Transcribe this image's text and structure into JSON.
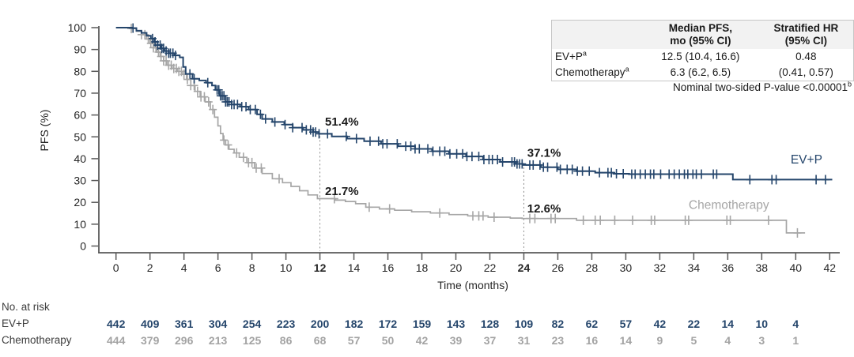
{
  "chart_data": {
    "type": "line",
    "subtype": "kaplan-meier-step",
    "title": "",
    "xlabel": "Time (months)",
    "ylabel": "PFS (%)",
    "xlim": [
      0,
      42
    ],
    "ylim": [
      0,
      100
    ],
    "x_ticks": [
      0,
      2,
      4,
      6,
      8,
      10,
      12,
      14,
      16,
      18,
      20,
      22,
      24,
      26,
      28,
      30,
      32,
      34,
      36,
      38,
      40,
      42
    ],
    "x_ticks_bold": [
      12,
      24
    ],
    "y_ticks": [
      0,
      10,
      20,
      30,
      40,
      50,
      60,
      70,
      80,
      90,
      100
    ],
    "grid": false,
    "legend_position": "labels-at-line-end",
    "series": [
      {
        "name": "Chemotherapy",
        "color": "#a6a6a6",
        "label_pos": {
          "month": 33.7,
          "pct": 17.0
        },
        "points": [
          [
            0,
            100
          ],
          [
            0.85,
            99.6
          ],
          [
            1.2,
            98.3
          ],
          [
            1.5,
            96.8
          ],
          [
            1.8,
            94.8
          ],
          [
            2.0,
            92.8
          ],
          [
            2.2,
            90.8
          ],
          [
            2.4,
            88.8
          ],
          [
            2.6,
            86.8
          ],
          [
            2.8,
            84.8
          ],
          [
            3.0,
            82.8
          ],
          [
            3.3,
            81.3
          ],
          [
            3.6,
            80.0
          ],
          [
            3.9,
            78.6
          ],
          [
            4.15,
            76.3
          ],
          [
            4.4,
            73.5
          ],
          [
            4.65,
            70.8
          ],
          [
            4.95,
            68.3
          ],
          [
            5.25,
            66.0
          ],
          [
            5.55,
            62.5
          ],
          [
            5.8,
            59.0
          ],
          [
            6.0,
            55.0
          ],
          [
            6.15,
            51.5
          ],
          [
            6.3,
            48.5
          ],
          [
            6.45,
            46.3
          ],
          [
            6.65,
            44.3
          ],
          [
            6.95,
            42.6
          ],
          [
            7.25,
            40.6
          ],
          [
            7.7,
            38.2
          ],
          [
            8.15,
            35.7
          ],
          [
            8.6,
            33.2
          ],
          [
            9.2,
            30.8
          ],
          [
            9.8,
            29.0
          ],
          [
            10.3,
            27.3
          ],
          [
            10.8,
            25.3
          ],
          [
            11.3,
            23.4
          ],
          [
            11.85,
            21.7
          ],
          [
            12.9,
            21.0
          ],
          [
            13.5,
            20.4
          ],
          [
            14.1,
            19.4
          ],
          [
            14.7,
            17.8
          ],
          [
            15.5,
            17.0
          ],
          [
            16.4,
            16.4
          ],
          [
            17.4,
            15.7
          ],
          [
            18.5,
            15.1
          ],
          [
            19.6,
            14.4
          ],
          [
            20.7,
            13.8
          ],
          [
            21.9,
            13.2
          ],
          [
            23.2,
            12.8
          ],
          [
            23.9,
            12.6
          ],
          [
            26.9,
            12.6
          ],
          [
            27.1,
            11.8
          ],
          [
            39.2,
            11.8
          ],
          [
            39.45,
            6.0
          ],
          [
            40.55,
            6.0
          ]
        ],
        "censor_months": [
          0.9,
          1.5,
          1.7,
          1.9,
          2.05,
          2.2,
          2.35,
          2.5,
          2.65,
          2.8,
          2.95,
          3.1,
          3.25,
          3.4,
          3.55,
          3.7,
          3.85,
          4.0,
          4.2,
          4.4,
          4.6,
          4.8,
          5.0,
          5.2,
          5.45,
          5.7,
          6.35,
          6.6,
          7.1,
          7.5,
          7.8,
          8.0,
          8.25,
          8.55,
          9.6,
          12.85,
          14.9,
          16.1,
          19.05,
          21.0,
          21.35,
          21.6,
          22.25,
          24.35,
          24.65,
          25.6,
          25.85,
          27.5,
          28.2,
          28.5,
          29.35,
          30.4,
          31.5,
          31.7,
          33.5,
          33.7,
          35.95,
          36.15,
          38.4,
          40.1
        ]
      },
      {
        "name": "EV+P",
        "color": "#24456b",
        "label_pos": {
          "month": 39.7,
          "pct": 37.8
        },
        "points": [
          [
            0,
            100
          ],
          [
            0.95,
            99.8
          ],
          [
            1.2,
            98.6
          ],
          [
            1.5,
            97.6
          ],
          [
            1.8,
            96.3
          ],
          [
            2.05,
            95.0
          ],
          [
            2.25,
            93.5
          ],
          [
            2.45,
            92.0
          ],
          [
            2.65,
            90.5
          ],
          [
            2.85,
            89.3
          ],
          [
            3.1,
            88.3
          ],
          [
            3.45,
            87.3
          ],
          [
            3.75,
            86.4
          ],
          [
            3.95,
            82.0
          ],
          [
            4.1,
            78.8
          ],
          [
            4.5,
            76.6
          ],
          [
            4.9,
            75.8
          ],
          [
            5.3,
            74.8
          ],
          [
            5.65,
            73.5
          ],
          [
            5.85,
            71.5
          ],
          [
            6.1,
            68.8
          ],
          [
            6.45,
            66.0
          ],
          [
            6.8,
            64.8
          ],
          [
            7.3,
            63.8
          ],
          [
            7.8,
            62.5
          ],
          [
            8.3,
            60.3
          ],
          [
            8.6,
            58.2
          ],
          [
            9.2,
            56.8
          ],
          [
            9.9,
            55.6
          ],
          [
            10.4,
            54.2
          ],
          [
            11.0,
            53.2
          ],
          [
            11.6,
            52.2
          ],
          [
            11.95,
            51.4
          ],
          [
            12.7,
            50.2
          ],
          [
            13.6,
            49.2
          ],
          [
            14.6,
            48.0
          ],
          [
            15.6,
            46.8
          ],
          [
            16.6,
            45.7
          ],
          [
            17.6,
            44.5
          ],
          [
            18.6,
            43.4
          ],
          [
            19.6,
            42.2
          ],
          [
            20.6,
            41.0
          ],
          [
            21.6,
            39.6
          ],
          [
            22.6,
            38.5
          ],
          [
            23.5,
            37.6
          ],
          [
            23.95,
            37.1
          ],
          [
            25.0,
            36.1
          ],
          [
            26.0,
            35.1
          ],
          [
            27.1,
            34.3
          ],
          [
            28.2,
            33.6
          ],
          [
            29.3,
            33.1
          ],
          [
            30.2,
            32.9
          ],
          [
            36.1,
            32.9
          ],
          [
            36.3,
            30.4
          ],
          [
            42.15,
            30.4
          ]
        ],
        "censor_months": [
          1.0,
          2.15,
          2.3,
          2.45,
          2.6,
          2.7,
          2.8,
          2.95,
          3.1,
          3.2,
          3.35,
          3.5,
          4.35,
          4.6,
          5.4,
          5.95,
          6.05,
          6.15,
          6.25,
          6.35,
          6.45,
          6.55,
          6.65,
          6.8,
          6.95,
          7.15,
          7.4,
          7.65,
          7.9,
          8.2,
          8.5,
          8.8,
          9.35,
          9.95,
          10.4,
          10.95,
          11.2,
          11.45,
          11.6,
          11.75,
          11.95,
          12.45,
          13.55,
          14.15,
          14.95,
          15.45,
          15.7,
          15.95,
          16.55,
          17.05,
          17.35,
          17.6,
          17.85,
          18.35,
          18.65,
          19.05,
          19.35,
          19.65,
          20.05,
          20.4,
          20.65,
          20.95,
          21.35,
          21.65,
          21.95,
          22.15,
          22.45,
          22.75,
          23.3,
          23.45,
          23.6,
          23.75,
          23.9,
          24.35,
          24.55,
          24.95,
          25.15,
          25.4,
          25.95,
          26.15,
          26.55,
          26.85,
          27.15,
          27.45,
          27.85,
          28.45,
          28.95,
          29.15,
          29.45,
          29.85,
          30.35,
          30.55,
          30.85,
          31.15,
          31.45,
          31.65,
          32.05,
          32.55,
          32.85,
          33.15,
          33.45,
          33.65,
          33.95,
          34.15,
          34.45,
          35.15,
          35.35,
          37.3,
          38.6,
          38.85,
          41.2,
          41.75
        ]
      }
    ],
    "annotations": [
      {
        "text": "51.4%",
        "month": 12.3,
        "pct": 55.2,
        "series": "EV+P",
        "at_month": 12
      },
      {
        "text": "21.7%",
        "month": 12.3,
        "pct": 23.4,
        "series": "Chemotherapy",
        "at_month": 12
      },
      {
        "text": "37.1%",
        "month": 24.2,
        "pct": 40.8,
        "series": "EV+P",
        "at_month": 24
      },
      {
        "text": "12.6%",
        "month": 24.2,
        "pct": 15.3,
        "series": "Chemotherapy",
        "at_month": 24
      }
    ],
    "reference_lines": [
      {
        "month": 12,
        "from_pct": 51.4
      },
      {
        "month": 24,
        "from_pct": 37.1
      }
    ]
  },
  "axes": {
    "x_title": "Time (months)",
    "y_title": "PFS (%)"
  },
  "stats_table": {
    "headers": [
      {
        "line1": "Median PFS,",
        "line2": "mo (95% CI)"
      },
      {
        "line1": "Stratified HR",
        "line2": "(95% CI)"
      }
    ],
    "rows": [
      {
        "label": "EV+P",
        "sup": "a",
        "median_pfs": "12.5 (10.4, 16.6)",
        "hr": "0.48"
      },
      {
        "label": "Chemotherapy",
        "sup": "a",
        "median_pfs": "6.3 (6.2, 6.5)",
        "hr": "(0.41, 0.57)"
      }
    ]
  },
  "p_value": {
    "text": "Nominal two-sided P-value <0.00001",
    "sup": "b"
  },
  "at_risk": {
    "title": "No. at risk",
    "times": [
      0,
      2,
      4,
      6,
      8,
      10,
      12,
      14,
      16,
      18,
      20,
      22,
      24,
      26,
      28,
      30,
      32,
      34,
      36,
      38,
      40
    ],
    "rows": [
      {
        "label": "EV+P",
        "color": "#24456b",
        "values": [
          442,
          409,
          361,
          304,
          254,
          223,
          200,
          182,
          172,
          159,
          143,
          128,
          109,
          82,
          62,
          57,
          42,
          22,
          14,
          10,
          4
        ]
      },
      {
        "label": "Chemotherapy",
        "color": "#a3a3a3",
        "values": [
          444,
          379,
          296,
          213,
          125,
          86,
          68,
          57,
          50,
          42,
          39,
          37,
          31,
          23,
          16,
          14,
          9,
          5,
          4,
          3,
          1
        ]
      }
    ]
  },
  "colors": {
    "ev_p": "#24456b",
    "chemotherapy": "#a6a6a6",
    "axis": "#595959",
    "tick_label": "#262626",
    "annotation": "#1a1a1a",
    "reference_line": "#8c8c8c",
    "table_header_bg": "#f2f2f2",
    "table_border": "#c6c6c6"
  }
}
